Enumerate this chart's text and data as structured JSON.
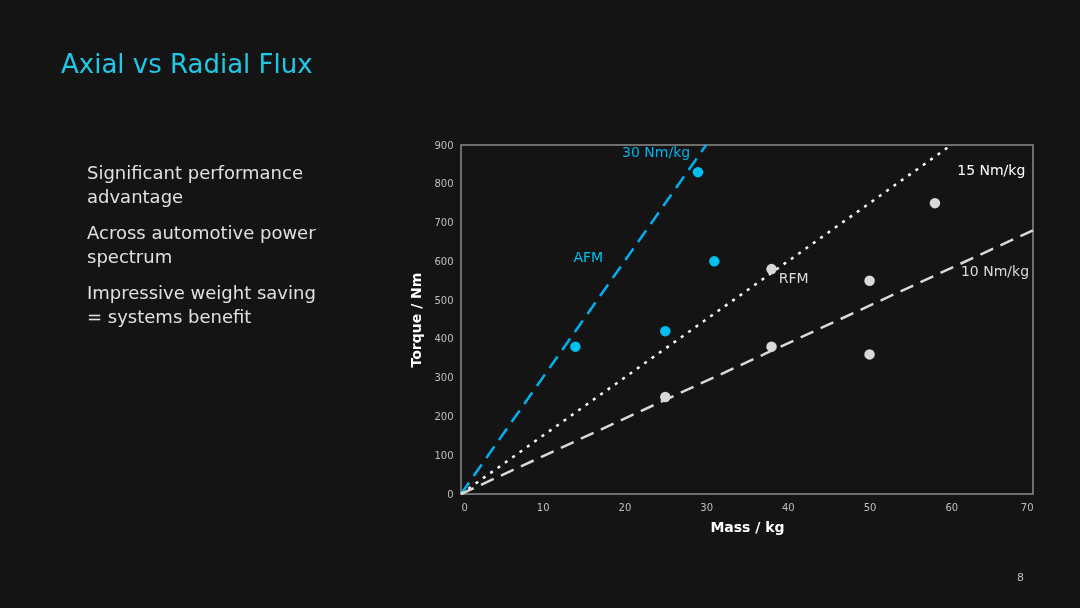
{
  "chart_data": {
    "type": "scatter",
    "title": "Axial vs Radial Flux",
    "xlabel": "Mass / kg",
    "ylabel": "Torque  / Nm",
    "xlim": [
      0,
      70
    ],
    "xticks": [
      0,
      10,
      20,
      30,
      40,
      50,
      60,
      70
    ],
    "ylim": [
      0,
      900
    ],
    "yticks": [
      0,
      100,
      200,
      300,
      400,
      500,
      600,
      700,
      800,
      900
    ],
    "series": [
      {
        "name": "30 Nm/kg",
        "type": "line",
        "color": "#00b0f0",
        "line_style": "dashed",
        "x": [
          0,
          30
        ],
        "values": [
          0,
          900
        ]
      },
      {
        "name": "15 Nm/kg",
        "type": "line",
        "color": "#ffffff",
        "line_style": "dotted",
        "x": [
          0,
          60
        ],
        "values": [
          0,
          900
        ]
      },
      {
        "name": "10 Nm/kg",
        "type": "line",
        "color": "#d9d9d9",
        "line_style": "dashed",
        "x": [
          0,
          70
        ],
        "values": [
          0,
          680
        ]
      },
      {
        "name": "AFM",
        "marker": "circle",
        "color": "#00c0f0",
        "x": [
          14,
          25,
          29,
          31
        ],
        "values": [
          380,
          420,
          830,
          600
        ]
      },
      {
        "name": "RFM",
        "marker": "circle",
        "color": "#d9d9d9",
        "x": [
          25,
          38,
          38,
          50,
          50,
          58
        ],
        "values": [
          250,
          580,
          380,
          550,
          360,
          750
        ]
      }
    ],
    "annotations": [
      "Significant performance\nadvantage",
      "Across automotive power\nspectrum",
      "Impressive weight saving\n= systems benefit",
      "8"
    ]
  }
}
